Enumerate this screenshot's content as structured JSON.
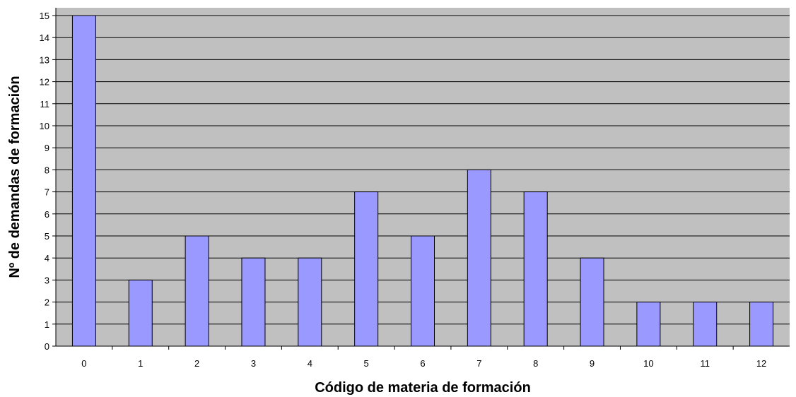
{
  "chart_data": {
    "type": "bar",
    "title": "",
    "xlabel": "Código de materia de formación",
    "ylabel": "Nº de demandas de formación",
    "categories": [
      "0",
      "1",
      "2",
      "3",
      "4",
      "5",
      "6",
      "7",
      "8",
      "9",
      "10",
      "11",
      "12"
    ],
    "values": [
      15,
      3,
      5,
      4,
      4,
      7,
      5,
      8,
      7,
      4,
      2,
      2,
      2
    ],
    "ylim": [
      0,
      15
    ],
    "y_ticks": [
      "0",
      "1",
      "2",
      "3",
      "4",
      "5",
      "6",
      "7",
      "8",
      "9",
      "10",
      "11",
      "12",
      "13",
      "14",
      "15"
    ],
    "grid": true,
    "legend": "none",
    "colors": {
      "plot_background": "#c0c0c0",
      "bar_fill": "#9999ff",
      "bar_stroke": "#000000",
      "gridline": "#000000"
    }
  }
}
